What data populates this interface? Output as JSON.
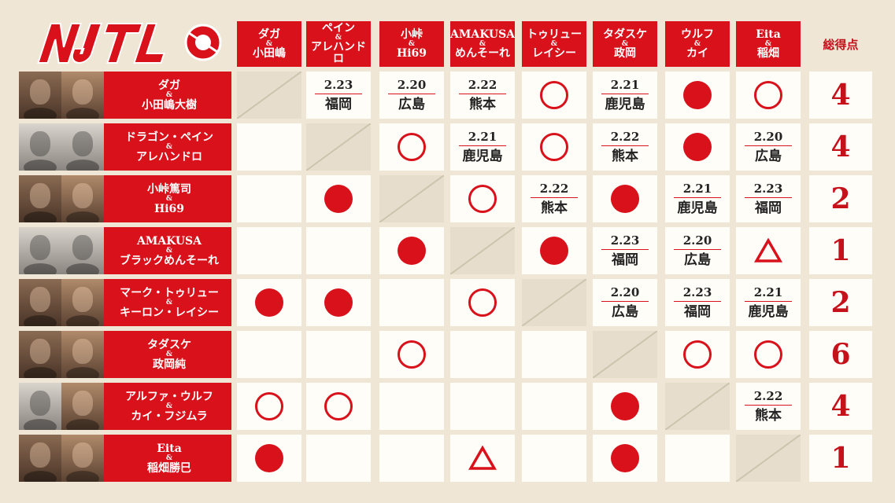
{
  "logo_text": "NJTL",
  "colors": {
    "accent": "#d9111b",
    "background": "#efe6d6",
    "cell": "#fffdf8"
  },
  "total_header": "総得点",
  "columns": [
    {
      "top": "ダガ",
      "amp": "&",
      "bottom": "小田嶋"
    },
    {
      "top": "ペイン",
      "amp": "&",
      "bottom": "アレハンドロ"
    },
    {
      "top": "小峠",
      "amp": "&",
      "bottom": "Hi69"
    },
    {
      "top": "AMAKUSA",
      "amp": "&",
      "bottom": "めんそーれ"
    },
    {
      "top": "トゥリュー",
      "amp": "&",
      "bottom": "レイシー"
    },
    {
      "top": "タダスケ",
      "amp": "&",
      "bottom": "政岡"
    },
    {
      "top": "ウルフ",
      "amp": "&",
      "bottom": "カイ"
    },
    {
      "top": "Eita",
      "amp": "&",
      "bottom": "稲畑"
    }
  ],
  "rows": [
    {
      "top": "ダガ",
      "amp": "&",
      "bottom": "小田嶋大樹",
      "total": "4",
      "cells": [
        {
          "t": "self"
        },
        {
          "t": "sched",
          "date": "2.23",
          "venue": "福岡"
        },
        {
          "t": "sched",
          "date": "2.20",
          "venue": "広島"
        },
        {
          "t": "sched",
          "date": "2.22",
          "venue": "熊本"
        },
        {
          "t": "loss"
        },
        {
          "t": "sched",
          "date": "2.21",
          "venue": "鹿児島"
        },
        {
          "t": "win"
        },
        {
          "t": "loss"
        }
      ]
    },
    {
      "top": "ドラゴン・ペイン",
      "amp": "&",
      "bottom": "アレハンドロ",
      "total": "4",
      "cells": [
        {
          "t": "empty"
        },
        {
          "t": "self"
        },
        {
          "t": "loss"
        },
        {
          "t": "sched",
          "date": "2.21",
          "venue": "鹿児島"
        },
        {
          "t": "loss"
        },
        {
          "t": "sched",
          "date": "2.22",
          "venue": "熊本"
        },
        {
          "t": "win"
        },
        {
          "t": "sched",
          "date": "2.20",
          "venue": "広島"
        }
      ]
    },
    {
      "top": "小峠篤司",
      "amp": "&",
      "bottom": "Hi69",
      "total": "2",
      "cells": [
        {
          "t": "empty"
        },
        {
          "t": "win"
        },
        {
          "t": "self"
        },
        {
          "t": "loss"
        },
        {
          "t": "sched",
          "date": "2.22",
          "venue": "熊本"
        },
        {
          "t": "win"
        },
        {
          "t": "sched",
          "date": "2.21",
          "venue": "鹿児島"
        },
        {
          "t": "sched",
          "date": "2.23",
          "venue": "福岡"
        }
      ]
    },
    {
      "top": "AMAKUSA",
      "amp": "&",
      "bottom": "ブラックめんそーれ",
      "total": "1",
      "cells": [
        {
          "t": "empty"
        },
        {
          "t": "empty"
        },
        {
          "t": "win"
        },
        {
          "t": "self"
        },
        {
          "t": "win"
        },
        {
          "t": "sched",
          "date": "2.23",
          "venue": "福岡"
        },
        {
          "t": "sched",
          "date": "2.20",
          "venue": "広島"
        },
        {
          "t": "draw"
        }
      ]
    },
    {
      "top": "マーク・トゥリュー",
      "amp": "&",
      "bottom": "キーロン・レイシー",
      "total": "2",
      "cells": [
        {
          "t": "win"
        },
        {
          "t": "win"
        },
        {
          "t": "empty"
        },
        {
          "t": "loss"
        },
        {
          "t": "self"
        },
        {
          "t": "sched",
          "date": "2.20",
          "venue": "広島"
        },
        {
          "t": "sched",
          "date": "2.23",
          "venue": "福岡"
        },
        {
          "t": "sched",
          "date": "2.21",
          "venue": "鹿児島"
        }
      ]
    },
    {
      "top": "タダスケ",
      "amp": "&",
      "bottom": "政岡純",
      "total": "6",
      "cells": [
        {
          "t": "empty"
        },
        {
          "t": "empty"
        },
        {
          "t": "loss"
        },
        {
          "t": "empty"
        },
        {
          "t": "empty"
        },
        {
          "t": "self"
        },
        {
          "t": "loss"
        },
        {
          "t": "loss"
        }
      ]
    },
    {
      "top": "アルファ・ウルフ",
      "amp": "&",
      "bottom": "カイ・フジムラ",
      "total": "4",
      "cells": [
        {
          "t": "loss"
        },
        {
          "t": "loss"
        },
        {
          "t": "empty"
        },
        {
          "t": "empty"
        },
        {
          "t": "empty"
        },
        {
          "t": "win"
        },
        {
          "t": "self"
        },
        {
          "t": "sched",
          "date": "2.22",
          "venue": "熊本"
        }
      ]
    },
    {
      "top": "Eita",
      "amp": "&",
      "bottom": "稲畑勝巳",
      "total": "1",
      "cells": [
        {
          "t": "win"
        },
        {
          "t": "empty"
        },
        {
          "t": "empty"
        },
        {
          "t": "draw"
        },
        {
          "t": "empty"
        },
        {
          "t": "win"
        },
        {
          "t": "empty"
        },
        {
          "t": "self"
        }
      ]
    }
  ]
}
